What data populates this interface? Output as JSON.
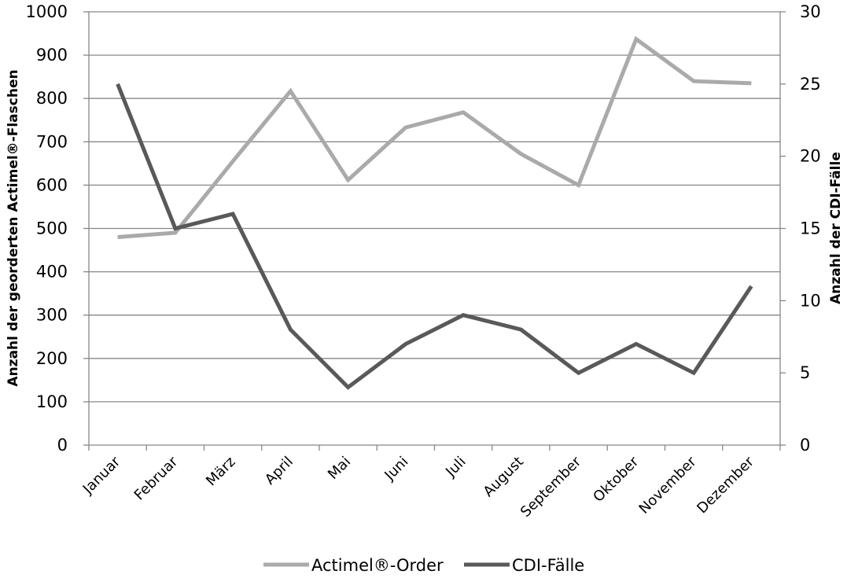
{
  "chart_data": {
    "type": "line",
    "categories": [
      "Januar",
      "Februar",
      "März",
      "April",
      "Mai",
      "Juni",
      "Juli",
      "August",
      "September",
      "Oktober",
      "November",
      "Dezember"
    ],
    "series": [
      {
        "name": "Actimel®-Order",
        "axis": "left",
        "color": "#aaaaaa",
        "values": [
          480,
          490,
          655,
          817,
          612,
          733,
          768,
          672,
          600,
          937,
          840,
          835
        ]
      },
      {
        "name": "CDI-Fälle",
        "axis": "right",
        "color": "#595959",
        "values": [
          25,
          15,
          16,
          8,
          4,
          7,
          9,
          8,
          5,
          7,
          5,
          11
        ]
      }
    ],
    "ylabel": "Anzahl der georderten Actimel®-Flaschen",
    "y2label": "Anzahl der CDI-Fälle",
    "ylim": [
      0,
      1000
    ],
    "y2lim": [
      0,
      30
    ],
    "yticks": [
      "0",
      "100",
      "200",
      "300",
      "400",
      "500",
      "600",
      "700",
      "800",
      "900",
      "1000"
    ],
    "y2ticks": [
      "0",
      "5",
      "10",
      "15",
      "20",
      "25",
      "30"
    ],
    "grid": true,
    "legend_position": "bottom"
  }
}
